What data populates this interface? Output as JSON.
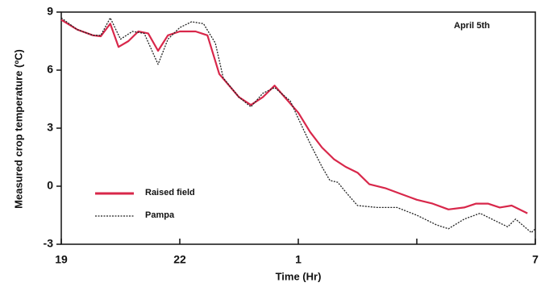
{
  "chart_data": {
    "type": "line",
    "annotation": "April 5th",
    "xlabel": "Time (Hr)",
    "ylabel": "Measured crop temperature (ºC)",
    "xlim": [
      19,
      31
    ],
    "xticks": [
      19,
      22,
      {
        "value": 25,
        "label": "1"
      },
      {
        "value": 28,
        "label": null
      },
      {
        "value": 31,
        "label": "7"
      }
    ],
    "ylim": [
      -3,
      9
    ],
    "yticks": [
      -3,
      0,
      3,
      6,
      9
    ],
    "legend": "lower left",
    "series": [
      {
        "name": "Raised field",
        "color": "#d8274a",
        "style": "solid",
        "x": [
          19,
          19.4,
          19.8,
          20.0,
          20.24,
          20.45,
          20.7,
          20.95,
          21.2,
          21.45,
          21.7,
          22.0,
          22.4,
          22.7,
          23.0,
          23.5,
          23.8,
          24.1,
          24.4,
          24.7,
          25.0,
          25.3,
          25.6,
          25.9,
          26.2,
          26.5,
          26.8,
          27.2,
          27.6,
          28.0,
          28.4,
          28.8,
          29.2,
          29.5,
          29.8,
          30.1,
          30.4,
          30.8
        ],
        "values": [
          8.6,
          8.1,
          7.8,
          7.75,
          8.4,
          7.2,
          7.5,
          8.0,
          7.9,
          7.0,
          7.8,
          8.0,
          8.0,
          7.8,
          5.8,
          4.6,
          4.2,
          4.6,
          5.2,
          4.5,
          3.8,
          2.8,
          2.0,
          1.4,
          1.0,
          0.7,
          0.1,
          -0.1,
          -0.4,
          -0.7,
          -0.9,
          -1.2,
          -1.1,
          -0.9,
          -0.9,
          -1.1,
          -1.0,
          -1.4
        ]
      },
      {
        "name": "Pampa",
        "color": "#222222",
        "style": "dotted",
        "x": [
          19,
          19.4,
          19.8,
          20.0,
          20.24,
          20.5,
          20.8,
          21.1,
          21.45,
          21.7,
          22.0,
          22.3,
          22.6,
          22.9,
          23.1,
          23.5,
          23.8,
          24.1,
          24.4,
          24.8,
          25.0,
          25.3,
          25.6,
          25.8,
          26.0,
          26.2,
          26.5,
          27.0,
          27.5,
          28.0,
          28.5,
          28.8,
          29.2,
          29.6,
          30.0,
          30.3,
          30.5,
          30.9,
          31.0
        ],
        "values": [
          8.7,
          8.1,
          7.8,
          7.8,
          8.7,
          7.6,
          8.0,
          7.9,
          6.3,
          7.6,
          8.2,
          8.5,
          8.4,
          7.4,
          5.6,
          4.6,
          4.1,
          4.8,
          5.1,
          4.4,
          3.5,
          2.2,
          1.0,
          0.3,
          0.2,
          -0.3,
          -1.0,
          -1.1,
          -1.1,
          -1.5,
          -2.0,
          -2.2,
          -1.7,
          -1.4,
          -1.8,
          -2.1,
          -1.7,
          -2.4,
          -2.2
        ]
      }
    ]
  }
}
